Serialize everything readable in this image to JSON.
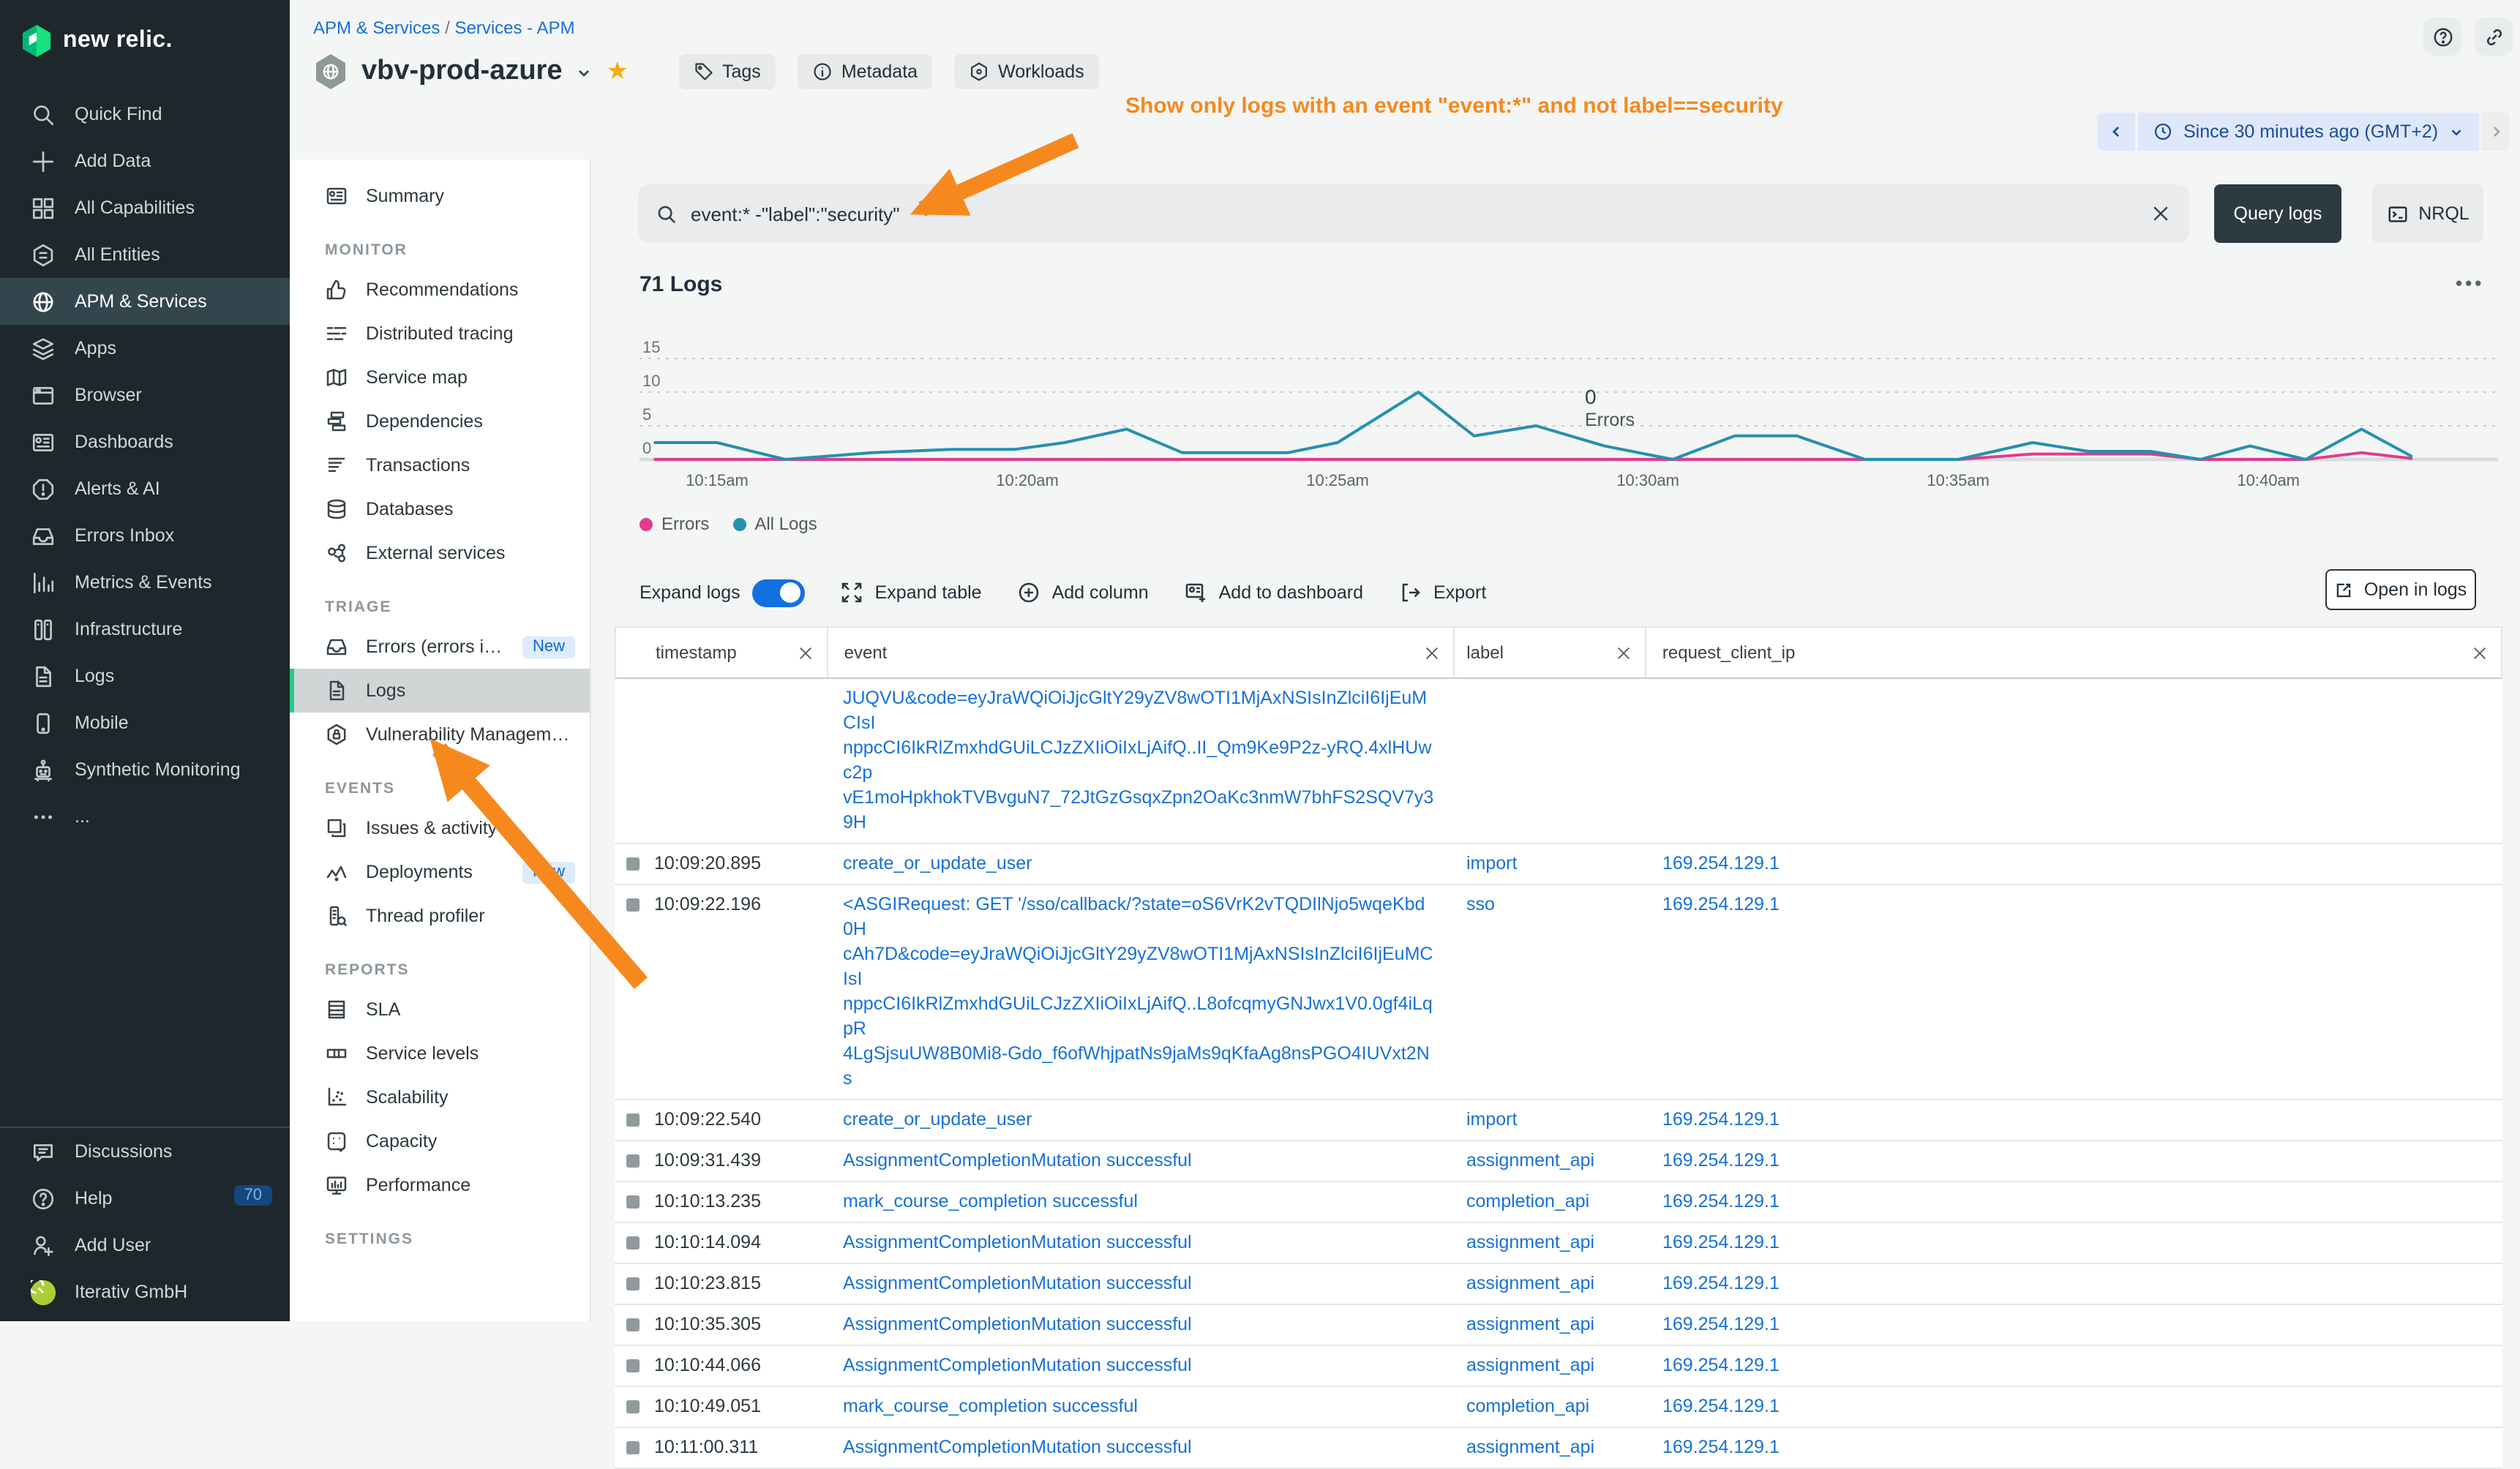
{
  "brand": {
    "logo_text": "new relic."
  },
  "sidebar": {
    "items": [
      {
        "label": "Quick Find",
        "icon": "search"
      },
      {
        "label": "Add Data",
        "icon": "plus"
      },
      {
        "label": "All Capabilities",
        "icon": "grid"
      },
      {
        "label": "All Entities",
        "icon": "hex-list"
      },
      {
        "label": "APM & Services",
        "icon": "globe",
        "active": true
      },
      {
        "label": "Apps",
        "icon": "layers"
      },
      {
        "label": "Browser",
        "icon": "window"
      },
      {
        "label": "Dashboards",
        "icon": "dashboard"
      },
      {
        "label": "Alerts & AI",
        "icon": "alert-octagon"
      },
      {
        "label": "Errors Inbox",
        "icon": "inbox"
      },
      {
        "label": "Metrics & Events",
        "icon": "bar-chart"
      },
      {
        "label": "Infrastructure",
        "icon": "servers"
      },
      {
        "label": "Logs",
        "icon": "file"
      },
      {
        "label": "Mobile",
        "icon": "mobile"
      },
      {
        "label": "Synthetic Monitoring",
        "icon": "robot"
      },
      {
        "label": "...",
        "icon": "dots"
      }
    ],
    "footer": [
      {
        "label": "Discussions",
        "icon": "chat"
      },
      {
        "label": "Help",
        "icon": "help",
        "badge": "70"
      },
      {
        "label": "Add User",
        "icon": "user-plus"
      },
      {
        "label": "Iterativ GmbH",
        "icon": "avatar"
      }
    ]
  },
  "breadcrumb": {
    "link1": "APM & Services",
    "separator": "/",
    "link2": "Services - APM"
  },
  "entity": {
    "name": "vbv-prod-azure",
    "buttons": [
      {
        "label": "Tags",
        "icon": "tag"
      },
      {
        "label": "Metadata",
        "icon": "info"
      },
      {
        "label": "Workloads",
        "icon": "hexagon"
      }
    ]
  },
  "annotation": {
    "text": "Show only logs with an event \"event:*\" and not label==security",
    "color": "#f6891e"
  },
  "time_picker": {
    "label": "Since 30 minutes ago (GMT+2)"
  },
  "nav": {
    "sections": [
      {
        "title": "",
        "items": [
          {
            "label": "Summary",
            "icon": "summary"
          }
        ]
      },
      {
        "title": "MONITOR",
        "items": [
          {
            "label": "Recommendations",
            "icon": "thumbs-up"
          },
          {
            "label": "Distributed tracing",
            "icon": "tracing"
          },
          {
            "label": "Service map",
            "icon": "map"
          },
          {
            "label": "Dependencies",
            "icon": "deps"
          },
          {
            "label": "Transactions",
            "icon": "transactions"
          },
          {
            "label": "Databases",
            "icon": "database"
          },
          {
            "label": "External services",
            "icon": "network"
          }
        ]
      },
      {
        "title": "TRIAGE",
        "items": [
          {
            "label": "Errors (errors inb...",
            "icon": "inbox",
            "badge": "New"
          },
          {
            "label": "Logs",
            "icon": "file",
            "active": true
          },
          {
            "label": "Vulnerability Management",
            "icon": "shield"
          }
        ]
      },
      {
        "title": "EVENTS",
        "items": [
          {
            "label": "Issues & activity",
            "icon": "copies"
          },
          {
            "label": "Deployments",
            "icon": "pulse",
            "badge": "New"
          },
          {
            "label": "Thread profiler",
            "icon": "thread"
          }
        ]
      },
      {
        "title": "REPORTS",
        "items": [
          {
            "label": "SLA",
            "icon": "ledger"
          },
          {
            "label": "Service levels",
            "icon": "segments"
          },
          {
            "label": "Scalability",
            "icon": "scatter"
          },
          {
            "label": "Capacity",
            "icon": "capacity"
          },
          {
            "label": "Performance",
            "icon": "monitor"
          }
        ]
      },
      {
        "title": "SETTINGS",
        "items": []
      }
    ]
  },
  "search": {
    "query": "event:* -\"label\":\"security\"",
    "query_logs_label": "Query logs",
    "nrql_label": "NRQL"
  },
  "logs_section": {
    "count_title": "71 Logs"
  },
  "chart_data": {
    "type": "line",
    "title": "71 Logs",
    "ylim": [
      0,
      15
    ],
    "y_ticks": [
      0,
      5,
      10,
      15
    ],
    "x_ticks": [
      {
        "minute": 15,
        "label": "10:15am"
      },
      {
        "minute": 20,
        "label": "10:20am"
      },
      {
        "minute": 25,
        "label": "10:25am"
      },
      {
        "minute": 30,
        "label": "10:30am"
      },
      {
        "minute": 35,
        "label": "10:35am"
      },
      {
        "minute": 40,
        "label": "10:40am"
      }
    ],
    "x_range_minutes": [
      13.75,
      43.7
    ],
    "grid": "dotted-horizontal",
    "legend_position": "bottom-left",
    "series": [
      {
        "name": "Errors",
        "color": "#df3d8f",
        "x": [
          14.0,
          15.0,
          16.1,
          17.5,
          18.8,
          19.8,
          20.6,
          21.6,
          22.5,
          23.3,
          24.2,
          25.0,
          26.3,
          27.2,
          28.2,
          29.3,
          30.4,
          31.4,
          32.4,
          33.5,
          35.0,
          36.2,
          37.1,
          38.1,
          38.9,
          39.7,
          40.6,
          41.5,
          42.3
        ],
        "values": [
          0,
          0,
          0,
          0,
          0,
          0,
          0,
          0,
          0,
          0,
          0,
          0,
          0,
          0,
          0,
          0,
          0,
          0,
          0,
          0,
          0,
          0.8,
          0.8,
          0.8,
          0,
          0,
          0,
          1.0,
          0.15
        ]
      },
      {
        "name": "All Logs",
        "color": "#2591ad",
        "x": [
          14.0,
          15.0,
          16.1,
          17.5,
          18.8,
          19.8,
          20.6,
          21.6,
          22.5,
          23.3,
          24.2,
          25.0,
          26.3,
          27.2,
          28.2,
          29.3,
          30.4,
          31.4,
          32.4,
          33.5,
          35.0,
          36.2,
          37.1,
          38.1,
          38.9,
          39.7,
          40.6,
          41.5,
          42.3
        ],
        "values": [
          2.5,
          2.5,
          0,
          1.0,
          1.5,
          1.5,
          2.5,
          4.5,
          1.0,
          1.0,
          1.0,
          2.5,
          10,
          3.5,
          5.0,
          2.0,
          0,
          3.5,
          3.5,
          0,
          0,
          2.5,
          1.2,
          1.2,
          0,
          2.0,
          0,
          4.5,
          0.5
        ]
      }
    ],
    "annotation": {
      "value": "0",
      "label": "Errors"
    }
  },
  "legend": [
    {
      "label": "Errors",
      "color": "#df3d8f"
    },
    {
      "label": "All Logs",
      "color": "#2591ad"
    }
  ],
  "toolbar": {
    "expand_logs": "Expand logs",
    "expand_table": "Expand table",
    "add_column": "Add column",
    "add_to_dashboard": "Add to dashboard",
    "export": "Export",
    "open_in_logs": "Open in logs"
  },
  "table": {
    "columns": [
      "timestamp",
      "event",
      "label",
      "request_client_ip"
    ],
    "rows": [
      {
        "timestamp": "",
        "event": "JUQVU&code=eyJraWQiOiJjcGltY29yZV8wOTI1MjAxNSIsInZlciI6IjEuMCIsI\nnppcCI6IkRlZmxhdGUiLCJzZXIiOiIxLjAifQ..II_Qm9Ke9P2z-yRQ.4xlHUwc2p\nvE1moHpkhokTVBvguN7_72JtGzGsqxZpn2OaKc3nmW7bhFS2SQV7y39H",
        "label": "",
        "request_client_ip": ""
      },
      {
        "timestamp": "10:09:20.895",
        "event": "create_or_update_user",
        "label": "import",
        "request_client_ip": "169.254.129.1"
      },
      {
        "timestamp": "10:09:22.196",
        "event": "<ASGIRequest: GET '/sso/callback/?state=oS6VrK2vTQDIlNjo5wqeKbd0H\ncAh7D&code=eyJraWQiOiJjcGltY29yZV8wOTI1MjAxNSIsInZlciI6IjEuMCIsI\nnppcCI6IkRlZmxhdGUiLCJzZXIiOiIxLjAifQ..L8ofcqmyGNJwx1V0.0gf4iLqpR\n4LgSjsuUW8B0Mi8-Gdo_f6ofWhjpatNs9jaMs9qKfaAg8nsPGO4IUVxt2Ns",
        "label": "sso",
        "request_client_ip": "169.254.129.1"
      },
      {
        "timestamp": "10:09:22.540",
        "event": "create_or_update_user",
        "label": "import",
        "request_client_ip": "169.254.129.1"
      },
      {
        "timestamp": "10:09:31.439",
        "event": "AssignmentCompletionMutation successful",
        "label": "assignment_api",
        "request_client_ip": "169.254.129.1"
      },
      {
        "timestamp": "10:10:13.235",
        "event": "mark_course_completion successful",
        "label": "completion_api",
        "request_client_ip": "169.254.129.1"
      },
      {
        "timestamp": "10:10:14.094",
        "event": "AssignmentCompletionMutation successful",
        "label": "assignment_api",
        "request_client_ip": "169.254.129.1"
      },
      {
        "timestamp": "10:10:23.815",
        "event": "AssignmentCompletionMutation successful",
        "label": "assignment_api",
        "request_client_ip": "169.254.129.1"
      },
      {
        "timestamp": "10:10:35.305",
        "event": "AssignmentCompletionMutation successful",
        "label": "assignment_api",
        "request_client_ip": "169.254.129.1"
      },
      {
        "timestamp": "10:10:44.066",
        "event": "AssignmentCompletionMutation successful",
        "label": "assignment_api",
        "request_client_ip": "169.254.129.1"
      },
      {
        "timestamp": "10:10:49.051",
        "event": "mark_course_completion successful",
        "label": "completion_api",
        "request_client_ip": "169.254.129.1"
      },
      {
        "timestamp": "10:11:00.311",
        "event": "AssignmentCompletionMutation successful",
        "label": "assignment_api",
        "request_client_ip": "169.254.129.1"
      }
    ]
  },
  "colors": {
    "accent_green": "#21ce83",
    "link_blue": "#1771d6",
    "orange": "#f6891e",
    "sidebar_bg": "#1e272c",
    "errors_pink": "#df3d8f",
    "all_logs_teal": "#2591ad"
  }
}
